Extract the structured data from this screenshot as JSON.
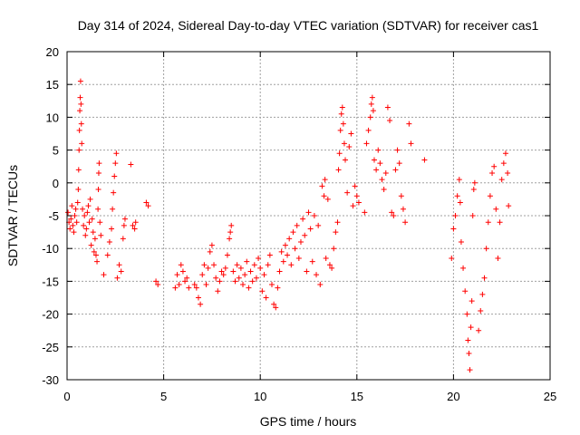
{
  "chart_data": {
    "type": "scatter",
    "title": "Day 314 of 2024, Sidereal Day-to-day VTEC variation (SDTVAR) for receiver cas1",
    "xlabel": "GPS time / hours",
    "ylabel": "SDTVAR / TECUs",
    "xlim": [
      0,
      25
    ],
    "ylim": [
      -30,
      20
    ],
    "xticks": [
      0,
      5,
      10,
      15,
      20,
      25
    ],
    "yticks": [
      -30,
      -25,
      -20,
      -15,
      -10,
      -5,
      0,
      5,
      10,
      15,
      20
    ],
    "grid": true,
    "marker": "+",
    "color": "#ff0000",
    "series": [
      {
        "name": "cas1 SDTVAR",
        "points": [
          [
            0.05,
            -4.5
          ],
          [
            0.1,
            -6.0
          ],
          [
            0.15,
            -7.0
          ],
          [
            0.2,
            -5.5
          ],
          [
            0.25,
            -3.5
          ],
          [
            0.3,
            -6.5
          ],
          [
            0.35,
            -7.5
          ],
          [
            0.4,
            -5.0
          ],
          [
            0.45,
            -4.0
          ],
          [
            0.5,
            -6.0
          ],
          [
            0.55,
            -3.0
          ],
          [
            0.58,
            -1.0
          ],
          [
            0.6,
            2.0
          ],
          [
            0.62,
            5.0
          ],
          [
            0.64,
            8.0
          ],
          [
            0.66,
            11.0
          ],
          [
            0.68,
            13.0
          ],
          [
            0.7,
            15.5
          ],
          [
            0.72,
            12.0
          ],
          [
            0.74,
            9.0
          ],
          [
            0.76,
            6.0
          ],
          [
            0.8,
            -4.0
          ],
          [
            0.85,
            -6.5
          ],
          [
            0.9,
            -5.0
          ],
          [
            0.95,
            -8.0
          ],
          [
            1.0,
            -7.0
          ],
          [
            1.05,
            -4.5
          ],
          [
            1.1,
            -3.5
          ],
          [
            1.15,
            -6.0
          ],
          [
            1.2,
            -2.5
          ],
          [
            1.25,
            -9.5
          ],
          [
            1.3,
            -5.5
          ],
          [
            1.35,
            -7.5
          ],
          [
            1.4,
            -10.5
          ],
          [
            1.45,
            -8.5
          ],
          [
            1.5,
            -11.0
          ],
          [
            1.55,
            -12.0
          ],
          [
            1.6,
            -4.0
          ],
          [
            1.62,
            -1.0
          ],
          [
            1.64,
            1.5
          ],
          [
            1.66,
            3.0
          ],
          [
            1.7,
            -6.0
          ],
          [
            1.75,
            -8.0
          ],
          [
            1.9,
            -14.0
          ],
          [
            2.1,
            -11.0
          ],
          [
            2.2,
            -9.0
          ],
          [
            2.3,
            -7.0
          ],
          [
            2.35,
            -4.0
          ],
          [
            2.4,
            -1.5
          ],
          [
            2.45,
            1.0
          ],
          [
            2.5,
            3.0
          ],
          [
            2.55,
            4.5
          ],
          [
            2.6,
            -14.5
          ],
          [
            2.7,
            -12.5
          ],
          [
            2.8,
            -13.5
          ],
          [
            2.9,
            -8.5
          ],
          [
            2.95,
            -6.5
          ],
          [
            3.0,
            -5.5
          ],
          [
            3.3,
            2.8
          ],
          [
            3.4,
            -6.5
          ],
          [
            3.5,
            -7.0
          ],
          [
            3.55,
            -6.0
          ],
          [
            4.1,
            -3.0
          ],
          [
            4.2,
            -3.5
          ],
          [
            4.6,
            -15.0
          ],
          [
            4.7,
            -15.5
          ],
          [
            5.6,
            -16.0
          ],
          [
            5.7,
            -14.0
          ],
          [
            5.8,
            -15.5
          ],
          [
            5.9,
            -12.5
          ],
          [
            6.0,
            -13.5
          ],
          [
            6.1,
            -15.0
          ],
          [
            6.2,
            -14.5
          ],
          [
            6.3,
            -16.0
          ],
          [
            6.6,
            -15.5
          ],
          [
            6.7,
            -16.0
          ],
          [
            6.8,
            -17.5
          ],
          [
            6.9,
            -18.5
          ],
          [
            7.0,
            -14.0
          ],
          [
            7.1,
            -12.5
          ],
          [
            7.2,
            -15.5
          ],
          [
            7.3,
            -13.0
          ],
          [
            7.4,
            -10.5
          ],
          [
            7.5,
            -9.5
          ],
          [
            7.6,
            -12.5
          ],
          [
            7.7,
            -14.5
          ],
          [
            7.8,
            -16.5
          ],
          [
            7.9,
            -15.0
          ],
          [
            8.0,
            -13.5
          ],
          [
            8.1,
            -14.0
          ],
          [
            8.2,
            -13.0
          ],
          [
            8.3,
            -11.0
          ],
          [
            8.4,
            -8.5
          ],
          [
            8.45,
            -7.5
          ],
          [
            8.5,
            -6.5
          ],
          [
            8.6,
            -13.5
          ],
          [
            8.7,
            -15.0
          ],
          [
            8.8,
            -12.5
          ],
          [
            8.9,
            -14.5
          ],
          [
            9.0,
            -13.0
          ],
          [
            9.1,
            -15.5
          ],
          [
            9.2,
            -14.0
          ],
          [
            9.3,
            -12.0
          ],
          [
            9.4,
            -16.0
          ],
          [
            9.5,
            -13.5
          ],
          [
            9.6,
            -15.0
          ],
          [
            9.7,
            -12.5
          ],
          [
            9.8,
            -14.5
          ],
          [
            9.9,
            -11.5
          ],
          [
            10.0,
            -13.0
          ],
          [
            10.1,
            -16.5
          ],
          [
            10.2,
            -14.0
          ],
          [
            10.3,
            -17.5
          ],
          [
            10.4,
            -12.5
          ],
          [
            10.5,
            -11.0
          ],
          [
            10.6,
            -15.5
          ],
          [
            10.7,
            -18.5
          ],
          [
            10.8,
            -19.0
          ],
          [
            10.9,
            -16.0
          ],
          [
            11.0,
            -13.5
          ],
          [
            11.1,
            -10.5
          ],
          [
            11.2,
            -12.0
          ],
          [
            11.3,
            -9.5
          ],
          [
            11.4,
            -11.0
          ],
          [
            11.5,
            -8.5
          ],
          [
            11.6,
            -12.5
          ],
          [
            11.7,
            -7.5
          ],
          [
            11.8,
            -10.0
          ],
          [
            11.9,
            -6.5
          ],
          [
            12.0,
            -11.5
          ],
          [
            12.1,
            -9.0
          ],
          [
            12.2,
            -5.5
          ],
          [
            12.3,
            -8.0
          ],
          [
            12.4,
            -13.5
          ],
          [
            12.5,
            -4.5
          ],
          [
            12.6,
            -7.0
          ],
          [
            12.7,
            -12.0
          ],
          [
            12.8,
            -5.0
          ],
          [
            12.9,
            -14.0
          ],
          [
            13.0,
            -6.5
          ],
          [
            13.1,
            -15.5
          ],
          [
            13.2,
            -0.5
          ],
          [
            13.3,
            -2.0
          ],
          [
            13.35,
            0.5
          ],
          [
            13.4,
            -11.5
          ],
          [
            13.5,
            -2.5
          ],
          [
            13.6,
            -12.5
          ],
          [
            13.7,
            -13.0
          ],
          [
            13.8,
            -10.0
          ],
          [
            13.9,
            -7.5
          ],
          [
            14.0,
            -6.0
          ],
          [
            14.05,
            2.0
          ],
          [
            14.1,
            4.5
          ],
          [
            14.15,
            8.0
          ],
          [
            14.2,
            10.5
          ],
          [
            14.25,
            11.5
          ],
          [
            14.3,
            9.0
          ],
          [
            14.35,
            6.0
          ],
          [
            14.4,
            3.5
          ],
          [
            14.5,
            -1.5
          ],
          [
            14.6,
            5.5
          ],
          [
            14.7,
            7.5
          ],
          [
            14.8,
            -3.5
          ],
          [
            14.9,
            -0.5
          ],
          [
            15.0,
            -2.0
          ],
          [
            15.1,
            -3.0
          ],
          [
            15.4,
            -4.5
          ],
          [
            15.5,
            6.0
          ],
          [
            15.6,
            8.0
          ],
          [
            15.7,
            10.0
          ],
          [
            15.75,
            12.0
          ],
          [
            15.8,
            13.0
          ],
          [
            15.85,
            11.0
          ],
          [
            15.9,
            3.5
          ],
          [
            16.0,
            2.0
          ],
          [
            16.1,
            5.0
          ],
          [
            16.2,
            3.0
          ],
          [
            16.3,
            0.5
          ],
          [
            16.4,
            -1.0
          ],
          [
            16.5,
            1.5
          ],
          [
            16.6,
            11.5
          ],
          [
            16.7,
            9.5
          ],
          [
            16.8,
            -4.5
          ],
          [
            16.9,
            -5.0
          ],
          [
            17.0,
            2.0
          ],
          [
            17.1,
            5.0
          ],
          [
            17.2,
            3.0
          ],
          [
            17.3,
            -2.0
          ],
          [
            17.4,
            -4.0
          ],
          [
            17.5,
            -6.0
          ],
          [
            17.7,
            9.0
          ],
          [
            17.8,
            6.0
          ],
          [
            18.5,
            3.5
          ],
          [
            19.9,
            -11.5
          ],
          [
            20.0,
            -7.0
          ],
          [
            20.1,
            -5.0
          ],
          [
            20.2,
            -2.0
          ],
          [
            20.3,
            0.5
          ],
          [
            20.35,
            -3.0
          ],
          [
            20.4,
            -9.0
          ],
          [
            20.5,
            -13.0
          ],
          [
            20.6,
            -16.5
          ],
          [
            20.7,
            -20.0
          ],
          [
            20.75,
            -24.0
          ],
          [
            20.8,
            -26.0
          ],
          [
            20.85,
            -28.5
          ],
          [
            20.9,
            -22.0
          ],
          [
            20.95,
            -18.0
          ],
          [
            21.0,
            -5.0
          ],
          [
            21.05,
            -1.0
          ],
          [
            21.1,
            0.0
          ],
          [
            21.3,
            -22.5
          ],
          [
            21.4,
            -19.5
          ],
          [
            21.5,
            -17.0
          ],
          [
            21.6,
            -14.5
          ],
          [
            21.7,
            -10.0
          ],
          [
            21.8,
            -6.0
          ],
          [
            21.9,
            -2.0
          ],
          [
            22.0,
            1.5
          ],
          [
            22.1,
            2.5
          ],
          [
            22.2,
            -4.0
          ],
          [
            22.3,
            -11.5
          ],
          [
            22.4,
            -6.0
          ],
          [
            22.5,
            0.5
          ],
          [
            22.6,
            3.0
          ],
          [
            22.7,
            4.5
          ],
          [
            22.8,
            1.5
          ],
          [
            22.85,
            -3.5
          ]
        ]
      }
    ]
  }
}
